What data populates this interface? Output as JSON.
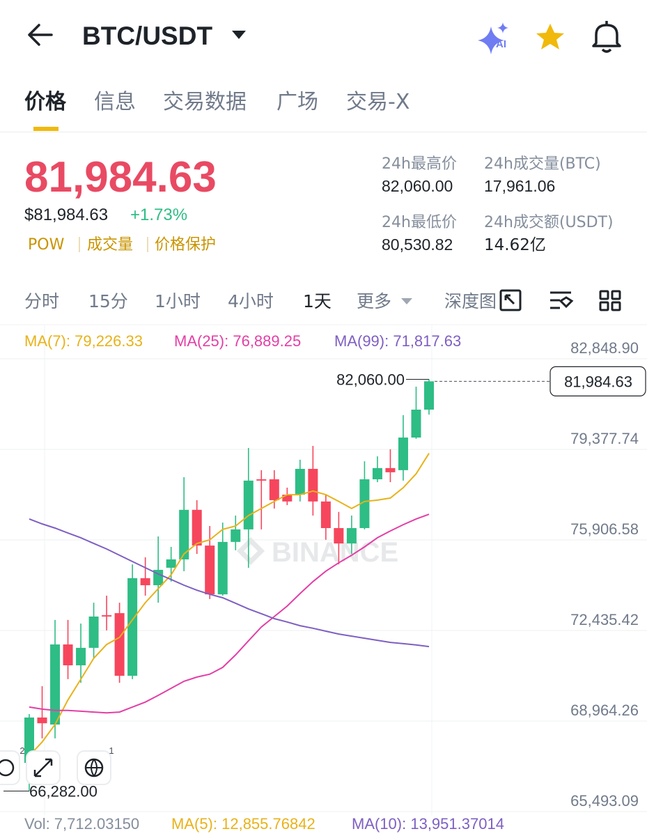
{
  "header": {
    "title": "BTC/USDT"
  },
  "tabs": [
    "价格",
    "信息",
    "交易数据",
    "广场",
    "交易-X"
  ],
  "price": {
    "last": "81,984.63",
    "usd": "$81,984.63",
    "change": "+1.73%",
    "tags": [
      "POW",
      "成交量",
      "价格保护"
    ]
  },
  "stats": [
    {
      "label": "24h最高价",
      "value": "82,060.00"
    },
    {
      "label": "24h成交量(BTC)",
      "value": "17,961.06"
    },
    {
      "label": "24h最低价",
      "value": "80,530.82"
    },
    {
      "label": "24h成交额(USDT)",
      "value": "14.62亿"
    }
  ],
  "intervals": [
    "分时",
    "15分",
    "1小时",
    "4小时",
    "1天",
    "更多",
    "深度图"
  ],
  "chart_data": {
    "type": "candlestick",
    "watermark": "BINANCE",
    "open": [
      67360,
      69100,
      68830,
      71900,
      71100,
      71770,
      73020,
      73100,
      70700,
      74440,
      74170,
      74840,
      75160,
      77060,
      75690,
      73820,
      75830,
      76310,
      78230,
      78230,
      77640,
      77640,
      78630,
      77380,
      76360,
      75770,
      76360,
      78230,
      78660,
      78580,
      79830,
      80900
    ],
    "high": [
      69230,
      70300,
      72840,
      72840,
      72700,
      73500,
      73770,
      73500,
      74970,
      75240,
      76040,
      75640,
      78310,
      77430,
      76440,
      76570,
      76840,
      79430,
      78580,
      78580,
      77910,
      78980,
      79510,
      77640,
      76980,
      76840,
      78920,
      79110,
      79380,
      80690,
      81780,
      82060
    ],
    "low": [
      66282,
      68300,
      68300,
      70570,
      70430,
      71370,
      72440,
      70430,
      70570,
      73770,
      73500,
      74310,
      74710,
      75370,
      73640,
      73770,
      75510,
      74840,
      76310,
      77110,
      77240,
      77380,
      76840,
      75910,
      74970,
      75370,
      76310,
      78120,
      78120,
      78180,
      79780,
      80710
    ],
    "close": [
      69100,
      68880,
      71900,
      71100,
      71770,
      72970,
      72970,
      70700,
      74440,
      74170,
      74760,
      75160,
      77060,
      75690,
      73820,
      75830,
      76310,
      78180,
      78180,
      77430,
      77380,
      78630,
      77380,
      76360,
      75770,
      76360,
      78230,
      78660,
      78500,
      79830,
      80900,
      81984.63
    ],
    "up_color": "#2ebd85",
    "down_color": "#f6465d",
    "series": [
      {
        "name": "MA(7): 79,226.33",
        "color": "#e8b21a",
        "values": [
          67630,
          68160,
          68830,
          69770,
          70570,
          71370,
          71900,
          72170,
          72840,
          73500,
          74040,
          74570,
          75370,
          75770,
          75910,
          76310,
          76440,
          76840,
          77110,
          77380,
          77640,
          77640,
          77780,
          77640,
          77380,
          77110,
          77380,
          77430,
          77510,
          77910,
          78440,
          79226.33
        ]
      },
      {
        "name": "MA(25): 76,889.25",
        "color": "#e33fa6",
        "values": [
          69500,
          69420,
          69370,
          69370,
          69340,
          69310,
          69280,
          69310,
          69500,
          69690,
          69950,
          70220,
          70490,
          70650,
          70760,
          71020,
          71500,
          72040,
          72570,
          72970,
          73370,
          73850,
          74310,
          74710,
          75030,
          75320,
          75640,
          75990,
          76250,
          76490,
          76710,
          76889.25
        ]
      },
      {
        "name": "MA(99): 71,817.63",
        "color": "#7e5fc2",
        "values": [
          76710,
          76520,
          76360,
          76170,
          75990,
          75770,
          75560,
          75320,
          75080,
          74840,
          74600,
          74390,
          74170,
          73980,
          73820,
          73690,
          73480,
          73260,
          73080,
          72890,
          72760,
          72620,
          72520,
          72410,
          72300,
          72220,
          72140,
          72060,
          71980,
          71930,
          71880,
          71817.63
        ]
      }
    ],
    "ylim": [
      65493.09,
      82848.9
    ],
    "yticks": [
      {
        "value": 82848.9,
        "label": "82,848.90"
      },
      {
        "value": 79377.74,
        "label": "79,377.74"
      },
      {
        "value": 75906.58,
        "label": "75,906.58"
      },
      {
        "value": 72435.42,
        "label": "72,435.42"
      },
      {
        "value": 68964.26,
        "label": "68,964.26"
      },
      {
        "value": 65493.09,
        "label": "65,493.09"
      }
    ],
    "grid": true,
    "high_label": "82,060.00",
    "low_label": "66,282.00",
    "last_price": {
      "value": 81984.63,
      "label": "81,984.63"
    },
    "badges": [
      "2",
      "1"
    ]
  },
  "volume": {
    "vol": "Vol: 7,712.03150",
    "ma5": "MA(5): 12,855.76842",
    "ma10": "MA(10): 13,951.37014"
  }
}
